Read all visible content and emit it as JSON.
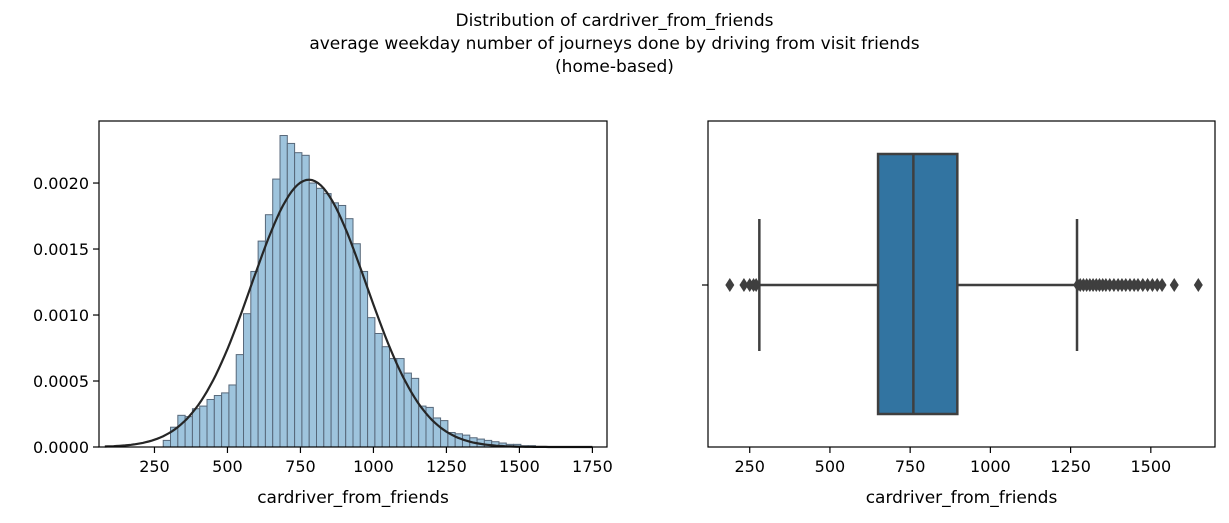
{
  "suptitle": {
    "line1": "Distribution of cardriver_from_friends",
    "line2": "average weekday number of journeys done by driving from visit friends",
    "line3": "(home-based)"
  },
  "chart_data": [
    {
      "type": "histogram",
      "xlabel": "cardriver_from_friends",
      "ylabel": "",
      "xlim": [
        60,
        1800
      ],
      "ylim": [
        0,
        0.00247
      ],
      "xticks": [
        "250",
        "500",
        "750",
        "1000",
        "1250",
        "1500",
        "1750"
      ],
      "yticks": [
        "0.0000",
        "0.0005",
        "0.0010",
        "0.0015",
        "0.0020"
      ],
      "bin_start": 280,
      "bin_width": 25,
      "bin_heights": [
        5e-05,
        0.00015,
        0.00024,
        0.00023,
        0.00029,
        0.00031,
        0.00036,
        0.00039,
        0.00041,
        0.00047,
        0.0007,
        0.00101,
        0.00133,
        0.00156,
        0.00176,
        0.00203,
        0.00236,
        0.0023,
        0.00223,
        0.00221,
        0.002,
        0.00196,
        0.00192,
        0.00185,
        0.00183,
        0.00173,
        0.00154,
        0.00133,
        0.00098,
        0.00086,
        0.00076,
        0.00067,
        0.00067,
        0.00056,
        0.00052,
        0.00031,
        0.0003,
        0.00022,
        0.0002,
        0.00011,
        0.0001,
        9e-05,
        7e-05,
        6e-05,
        5e-05,
        4e-05,
        3e-05,
        2e-05,
        2e-05,
        1e-05,
        1e-05
      ],
      "colors": {
        "bar": "#9ec4dd",
        "edge": "#57687a",
        "curve": "#262626"
      },
      "normal_fit": {
        "mean": 779,
        "std": 197,
        "x_range": [
          80,
          1750
        ]
      }
    },
    {
      "type": "box",
      "xlabel": "cardriver_from_friends",
      "ylabel": "",
      "xlim": [
        120,
        1700
      ],
      "xticks": [
        "250",
        "500",
        "750",
        "1000",
        "1250",
        "1500"
      ],
      "box": {
        "whisker_low": 280,
        "q1": 650,
        "median": 760,
        "q3": 897,
        "whisker_high": 1270
      },
      "outliers": [
        188,
        232,
        250,
        262,
        270,
        1272,
        1280,
        1290,
        1300,
        1310,
        1320,
        1330,
        1340,
        1350,
        1360,
        1372,
        1385,
        1398,
        1410,
        1422,
        1435,
        1448,
        1460,
        1475,
        1490,
        1505,
        1520,
        1535,
        1573,
        1648
      ],
      "colors": {
        "box": "#3274a1",
        "lines": "#3f3f3f",
        "outlier": "#3f3f3f"
      }
    }
  ]
}
